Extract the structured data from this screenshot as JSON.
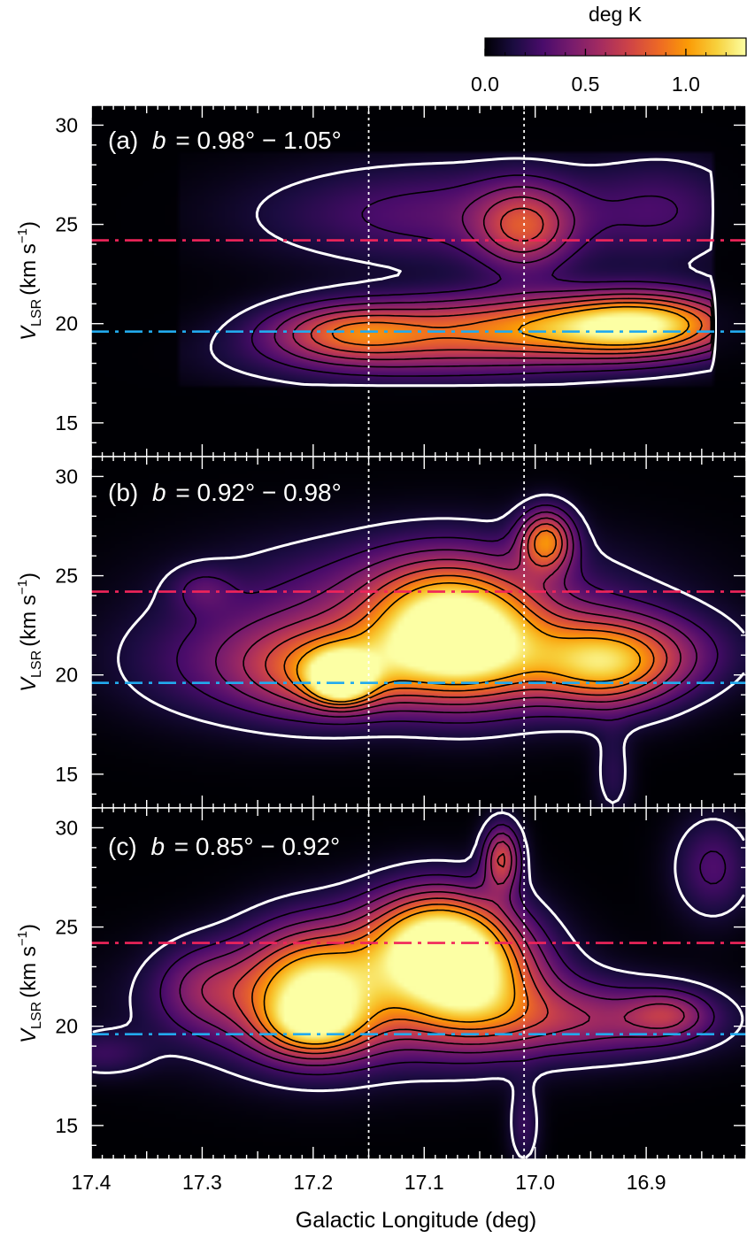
{
  "colorbar": {
    "label": "deg K",
    "ticks": [
      "0.0",
      "0.5",
      "1.0"
    ],
    "tick_values": [
      0.0,
      0.5,
      1.0
    ],
    "range": [
      0.0,
      1.3
    ],
    "colormap": "inferno",
    "stops": [
      "#000004",
      "#1b0c41",
      "#4a0c6b",
      "#781c6d",
      "#a52c60",
      "#cf4446",
      "#ed6925",
      "#fb9b06",
      "#f7d13d",
      "#fcffa4"
    ]
  },
  "guides": {
    "vertical_lines_l": [
      17.15,
      17.01
    ],
    "vertical_line_color": "#ffffff",
    "horizontal_lines_v": [
      {
        "v": 24.2,
        "color": "#f0245a"
      },
      {
        "v": 19.6,
        "color": "#22aaee"
      }
    ]
  },
  "contour_colors": {
    "outer": "#ffffff",
    "inner": "#000000"
  },
  "chart_data": [
    {
      "type": "heatmap",
      "panel": "(a)",
      "b_label": "b = 0.98° − 1.05°",
      "panel_letter": "(a)",
      "b_symbol": "b",
      "b_range_text": "= 0.98° − 1.05°",
      "xlim": [
        17.4,
        16.81
      ],
      "ylim": [
        13.3,
        31.0
      ],
      "ylabel_main": "V",
      "ylabel_sub": "LSR",
      "ylabel_units": "(km s",
      "ylabel_exp": "−1",
      "ylabel_close": ")",
      "yticks": [
        15,
        20,
        25,
        30
      ],
      "yticklabels": [
        "15",
        "20",
        "25",
        "30"
      ],
      "data_extent_l": [
        17.32,
        16.84
      ],
      "data_extent_v": [
        16.8,
        28.6
      ],
      "components": [
        {
          "l": 17.0,
          "v": 19.8,
          "sl": 0.11,
          "sv": 1.2,
          "amp": 0.85
        },
        {
          "l": 16.9,
          "v": 20.0,
          "sl": 0.055,
          "sv": 1.1,
          "amp": 0.8
        },
        {
          "l": 17.17,
          "v": 19.6,
          "sl": 0.05,
          "sv": 1.0,
          "amp": 0.55
        },
        {
          "l": 17.01,
          "v": 24.8,
          "sl": 0.03,
          "sv": 1.5,
          "amp": 0.55
        },
        {
          "l": 17.08,
          "v": 25.5,
          "sl": 0.12,
          "sv": 1.8,
          "amp": 0.33
        },
        {
          "l": 16.88,
          "v": 25.8,
          "sl": 0.05,
          "sv": 2.0,
          "amp": 0.2
        },
        {
          "l": 17.12,
          "v": 18.3,
          "sl": 0.12,
          "sv": 1.2,
          "amp": 0.25
        }
      ]
    },
    {
      "type": "heatmap",
      "panel": "(b)",
      "b_label": "b = 0.92° − 0.98°",
      "panel_letter": "(b)",
      "b_symbol": "b",
      "b_range_text": "= 0.92° − 0.98°",
      "xlim": [
        17.4,
        16.81
      ],
      "ylim": [
        13.3,
        31.0
      ],
      "ylabel_main": "V",
      "ylabel_sub": "LSR",
      "ylabel_units": "(km s",
      "ylabel_exp": "−1",
      "ylabel_close": ")",
      "yticks": [
        15,
        20,
        25,
        30
      ],
      "yticklabels": [
        "15",
        "20",
        "25",
        "30"
      ],
      "data_extent_l": [
        17.4,
        16.81
      ],
      "data_extent_v": [
        13.3,
        31.0
      ],
      "components": [
        {
          "l": 17.175,
          "v": 19.8,
          "sl": 0.018,
          "sv": 0.8,
          "amp": 1.1
        },
        {
          "l": 17.18,
          "v": 20.2,
          "sl": 0.05,
          "sv": 1.5,
          "amp": 0.6
        },
        {
          "l": 17.08,
          "v": 22.5,
          "sl": 0.05,
          "sv": 2.2,
          "amp": 0.9
        },
        {
          "l": 17.05,
          "v": 21.0,
          "sl": 0.05,
          "sv": 2.0,
          "amp": 0.7
        },
        {
          "l": 16.99,
          "v": 26.8,
          "sl": 0.017,
          "sv": 1.1,
          "amp": 0.85
        },
        {
          "l": 16.94,
          "v": 20.5,
          "sl": 0.045,
          "sv": 1.6,
          "amp": 0.85
        },
        {
          "l": 17.23,
          "v": 20.5,
          "sl": 0.09,
          "sv": 2.0,
          "amp": 0.4
        },
        {
          "l": 17.1,
          "v": 24.0,
          "sl": 0.13,
          "sv": 2.2,
          "amp": 0.35
        },
        {
          "l": 16.9,
          "v": 21.0,
          "sl": 0.06,
          "sv": 1.5,
          "amp": 0.35
        },
        {
          "l": 17.3,
          "v": 24.3,
          "sl": 0.02,
          "sv": 0.8,
          "amp": 0.2
        },
        {
          "l": 16.93,
          "v": 15.0,
          "sl": 0.012,
          "sv": 1.6,
          "amp": 0.18
        }
      ]
    },
    {
      "type": "heatmap",
      "panel": "(c)",
      "b_label": "b = 0.85° − 0.92°",
      "panel_letter": "(c)",
      "b_symbol": "b",
      "b_range_text": "= 0.85° − 0.92°",
      "xlim": [
        17.4,
        16.81
      ],
      "ylim": [
        13.3,
        31.0
      ],
      "ylabel_main": "V",
      "ylabel_sub": "LSR",
      "ylabel_units": "(km s",
      "ylabel_exp": "−1",
      "ylabel_close": ")",
      "yticks": [
        15,
        20,
        25,
        30
      ],
      "yticklabels": [
        "15",
        "20",
        "25",
        "30"
      ],
      "data_extent_l": [
        17.4,
        16.81
      ],
      "data_extent_v": [
        13.3,
        31.0
      ],
      "components": [
        {
          "l": 17.2,
          "v": 22.0,
          "sl": 0.045,
          "sv": 2.2,
          "amp": 1.0
        },
        {
          "l": 17.09,
          "v": 24.5,
          "sl": 0.045,
          "sv": 1.8,
          "amp": 1.1
        },
        {
          "l": 17.06,
          "v": 22.3,
          "sl": 0.045,
          "sv": 2.0,
          "amp": 0.9
        },
        {
          "l": 17.2,
          "v": 20.0,
          "sl": 0.03,
          "sv": 1.0,
          "amp": 0.5
        },
        {
          "l": 17.03,
          "v": 28.5,
          "sl": 0.012,
          "sv": 1.2,
          "amp": 0.7
        },
        {
          "l": 17.16,
          "v": 21.0,
          "sl": 0.12,
          "sv": 2.2,
          "amp": 0.4
        },
        {
          "l": 16.95,
          "v": 20.3,
          "sl": 0.08,
          "sv": 1.3,
          "amp": 0.45
        },
        {
          "l": 16.88,
          "v": 20.6,
          "sl": 0.025,
          "sv": 0.8,
          "amp": 0.35
        },
        {
          "l": 16.84,
          "v": 28.0,
          "sl": 0.025,
          "sv": 1.8,
          "amp": 0.3
        },
        {
          "l": 17.3,
          "v": 22.0,
          "sl": 0.03,
          "sv": 1.5,
          "amp": 0.3
        },
        {
          "l": 17.39,
          "v": 18.6,
          "sl": 0.03,
          "sv": 0.8,
          "amp": 0.2
        },
        {
          "l": 17.01,
          "v": 15.0,
          "sl": 0.01,
          "sv": 1.5,
          "amp": 0.22
        }
      ]
    }
  ],
  "x_axis": {
    "label": "Galactic Longitude (deg)",
    "ticks": [
      17.4,
      17.3,
      17.2,
      17.1,
      17.0,
      16.9
    ],
    "ticklabels": [
      "17.4",
      "17.3",
      "17.2",
      "17.1",
      "17.0",
      "16.9"
    ]
  }
}
